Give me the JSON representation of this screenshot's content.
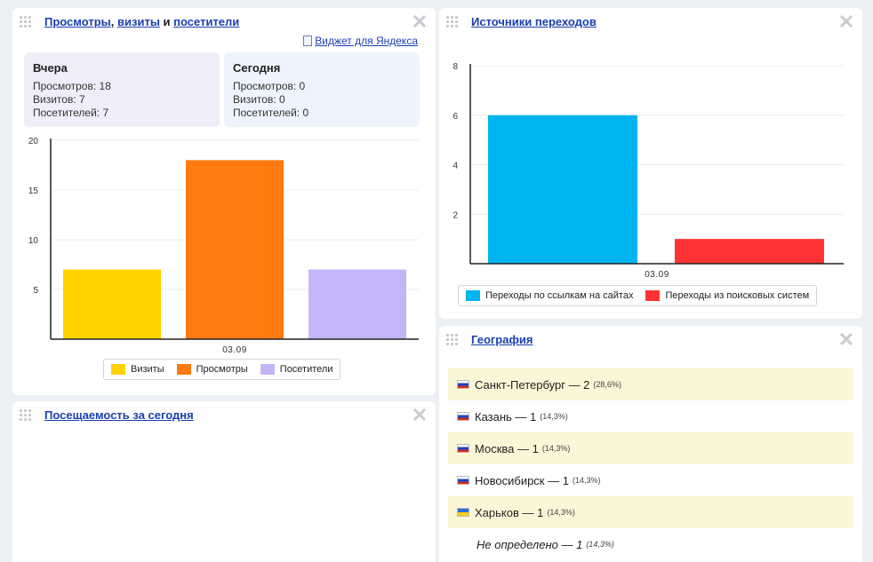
{
  "widgets": {
    "stats": {
      "title_part1": "Просмотры",
      "title_sep1": ",",
      "title_part2": "визиты",
      "title_sep2": "и",
      "title_part3": "посетители",
      "yandex_widget_link": "Виджет для Яндекса",
      "yesterday": {
        "label": "Вчера",
        "views": "Просмотров: 18",
        "visits": "Визитов: 7",
        "visitors": "Посетителей: 7"
      },
      "today": {
        "label": "Сегодня",
        "views": "Просмотров: 0",
        "visits": "Визитов: 0",
        "visitors": "Посетителей: 0"
      }
    },
    "sources": {
      "title": "Источники переходов"
    },
    "attendance": {
      "title": "Посещаемость за сегодня"
    },
    "geography": {
      "title": "География",
      "rows": [
        {
          "city": "Санкт-Петербург — 2",
          "pct": "(28,6%)",
          "flag": "ru"
        },
        {
          "city": "Казань — 1",
          "pct": "(14,3%)",
          "flag": "ru"
        },
        {
          "city": "Москва — 1",
          "pct": "(14,3%)",
          "flag": "ru"
        },
        {
          "city": "Новосибирск — 1",
          "pct": "(14,3%)",
          "flag": "ru"
        },
        {
          "city": "Харьков — 1",
          "pct": "(14,3%)",
          "flag": "ua"
        },
        {
          "city": "Не определено — 1",
          "pct": "(14,3%)",
          "flag": "none"
        }
      ]
    }
  },
  "chart_data": [
    {
      "type": "bar",
      "categories": [
        "03.09"
      ],
      "series": [
        {
          "name": "Визиты",
          "values": [
            7
          ],
          "color": "#ffd200"
        },
        {
          "name": "Просмотры",
          "values": [
            18
          ],
          "color": "#ff7a0e"
        },
        {
          "name": "Посетители",
          "values": [
            7
          ],
          "color": "#c3b5f8"
        }
      ],
      "yticks": [
        "5",
        "10",
        "15",
        "20"
      ],
      "ylim": [
        0,
        20
      ],
      "legend": "bottom"
    },
    {
      "type": "bar",
      "categories": [
        "03.09"
      ],
      "series": [
        {
          "name": "Переходы по ссылкам на сайтах",
          "values": [
            6
          ],
          "color": "#00b4f0"
        },
        {
          "name": "Переходы из поисковых систем",
          "values": [
            1
          ],
          "color": "#ff3333"
        }
      ],
      "yticks": [
        "2",
        "4",
        "6",
        "8"
      ],
      "ylim": [
        0,
        8
      ],
      "legend": "bottom"
    }
  ]
}
